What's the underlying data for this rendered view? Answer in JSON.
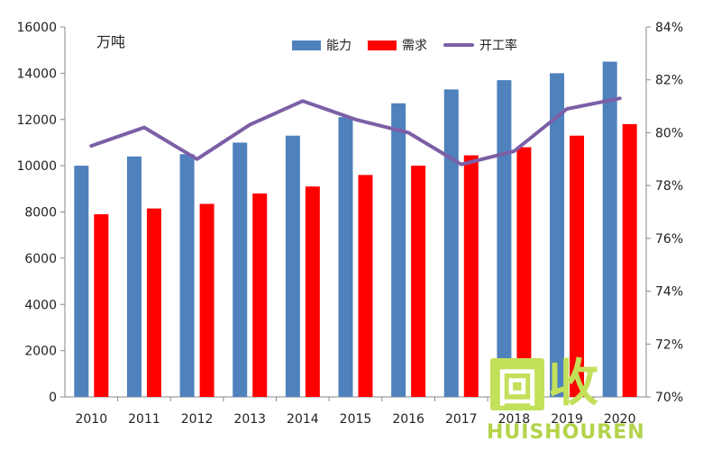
{
  "chart_data": {
    "type": "bar",
    "unit_label": "万吨",
    "categories": [
      "2010",
      "2011",
      "2012",
      "2013",
      "2014",
      "2015",
      "2016",
      "2017",
      "2018",
      "2019",
      "2020"
    ],
    "series": [
      {
        "name": "能力",
        "type": "bar",
        "axis": "left",
        "color": "#4f81bd",
        "values": [
          10000,
          10400,
          10500,
          11000,
          11300,
          12100,
          12700,
          13300,
          13700,
          14000,
          14500
        ]
      },
      {
        "name": "需求",
        "type": "bar",
        "axis": "left",
        "color": "#ff0000",
        "values": [
          7900,
          8150,
          8350,
          8800,
          9100,
          9600,
          10000,
          10450,
          10800,
          11300,
          11800
        ]
      },
      {
        "name": "开工率",
        "type": "line",
        "axis": "right",
        "color": "#7c5fa6",
        "values": [
          79.5,
          80.2,
          79.0,
          80.3,
          81.2,
          80.5,
          80.0,
          78.8,
          79.3,
          80.9,
          81.3
        ]
      }
    ],
    "y_left": {
      "min": 0,
      "max": 16000,
      "ticks": [
        "0",
        "2000",
        "4000",
        "6000",
        "8000",
        "10000",
        "12000",
        "14000",
        "16000"
      ]
    },
    "y_right": {
      "min": 70,
      "max": 84,
      "ticks": [
        "70%",
        "72%",
        "74%",
        "76%",
        "78%",
        "80%",
        "82%",
        "84%"
      ]
    },
    "legend_position": "top-center",
    "grid": false
  },
  "watermark": {
    "box_text": "回",
    "big_text": "收",
    "latin_text": "HUISHOUREN"
  }
}
